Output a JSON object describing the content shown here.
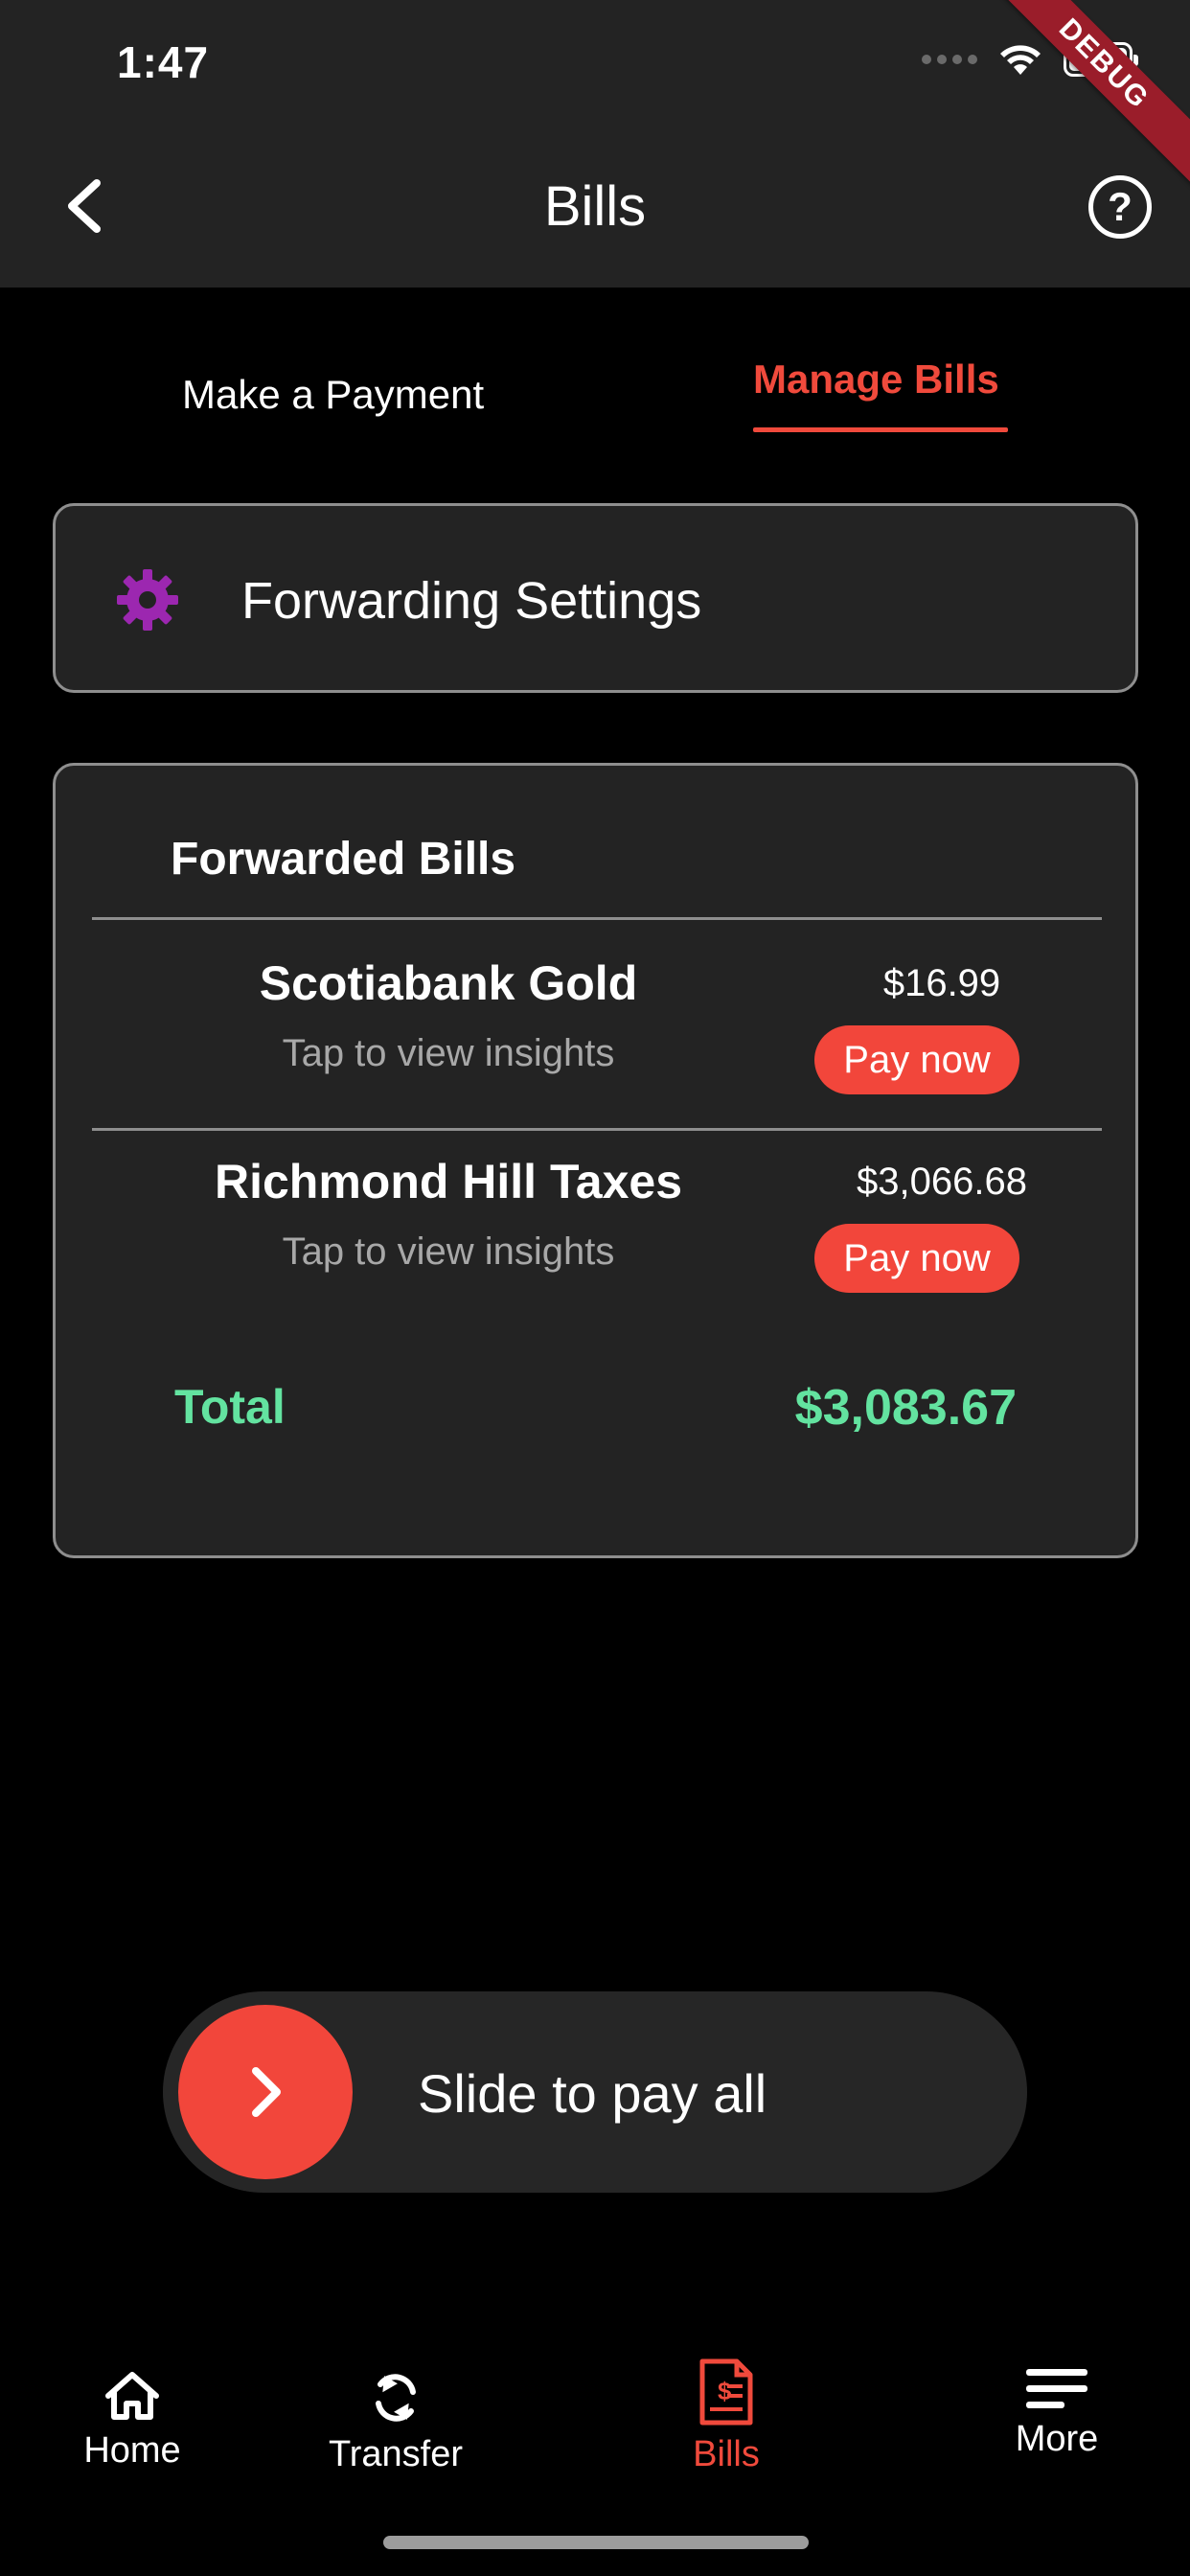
{
  "status_bar": {
    "time": "1:47",
    "debug_label": "DEBUG"
  },
  "app_bar": {
    "title": "Bills"
  },
  "tabs": [
    {
      "label": "Make a Payment",
      "active": false
    },
    {
      "label": "Manage Bills",
      "active": true
    }
  ],
  "forwarding": {
    "label": "Forwarding Settings",
    "icon": "gear-icon"
  },
  "forwarded_bills": {
    "title": "Forwarded Bills",
    "items": [
      {
        "name": "Scotiabank Gold",
        "subtitle": "Tap to view insights",
        "amount": "$16.99",
        "action": "Pay now"
      },
      {
        "name": "Richmond Hill Taxes",
        "subtitle": "Tap to view insights",
        "amount": "$3,066.68",
        "action": "Pay now"
      }
    ],
    "total_label": "Total",
    "total_value": "$3,083.67"
  },
  "slider": {
    "label": "Slide to pay all"
  },
  "nav": [
    {
      "label": "Home",
      "icon": "home-icon",
      "active": false
    },
    {
      "label": "Transfer",
      "icon": "sync-icon",
      "active": false
    },
    {
      "label": "Bills",
      "icon": "bill-icon",
      "active": true
    },
    {
      "label": "More",
      "icon": "menu-icon",
      "active": false
    }
  ],
  "colors": {
    "accent": "#f04a3c",
    "total": "#63e3a0",
    "gear": "#9c27b0",
    "card_bg": "#232323"
  }
}
